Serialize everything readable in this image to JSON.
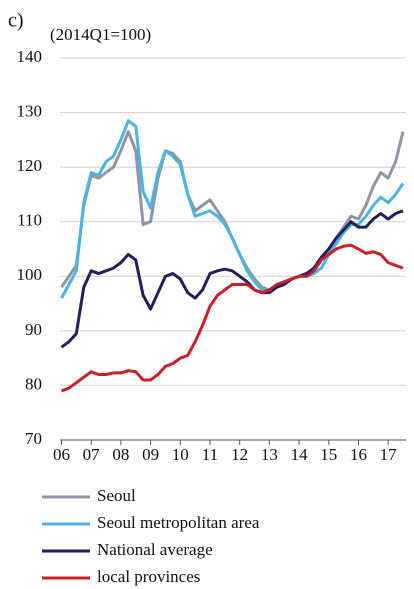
{
  "chart_data": {
    "type": "line",
    "title": "c)",
    "subtitle": "(2014Q1=100)",
    "x": [
      2006,
      2006.25,
      2006.5,
      2006.75,
      2007,
      2007.25,
      2007.5,
      2007.75,
      2008,
      2008.25,
      2008.5,
      2008.75,
      2009,
      2009.25,
      2009.5,
      2009.75,
      2010,
      2010.25,
      2010.5,
      2010.75,
      2011,
      2011.25,
      2011.5,
      2011.75,
      2012,
      2012.25,
      2012.5,
      2012.75,
      2013,
      2013.25,
      2013.5,
      2013.75,
      2014,
      2014.25,
      2014.5,
      2014.75,
      2015,
      2015.25,
      2015.5,
      2015.75,
      2016,
      2016.25,
      2016.5,
      2016.75,
      2017,
      2017.25,
      2017.5
    ],
    "series": [
      {
        "name": "Seoul",
        "color": "#8c96a4",
        "values": [
          98,
          100,
          102,
          113,
          118.5,
          118,
          119,
          120,
          123,
          126.5,
          123,
          109.5,
          110,
          118,
          123,
          122.5,
          121,
          115,
          112,
          113,
          114,
          112,
          110,
          107,
          104,
          101.5,
          99.5,
          98,
          97.5,
          98.5,
          99,
          99.5,
          100,
          100.5,
          101,
          103,
          105,
          107,
          109,
          111,
          110.5,
          113,
          116.5,
          119,
          118,
          121,
          126.5
        ]
      },
      {
        "name": "Seoul metropolitan area",
        "color": "#4bb4e0",
        "values": [
          96,
          98.5,
          101,
          113.5,
          119,
          118.5,
          121,
          122,
          125,
          128.5,
          127.5,
          115.5,
          112.5,
          119,
          123,
          122,
          120.5,
          115,
          111,
          111.5,
          112,
          111,
          109.5,
          107,
          104,
          101,
          99,
          97.5,
          97,
          98,
          98.5,
          99.5,
          100,
          100,
          100.5,
          101.5,
          104,
          106,
          108,
          109.5,
          109.5,
          111,
          113,
          114.5,
          113.5,
          115,
          117
        ]
      },
      {
        "name": "National average",
        "color": "#231f5c",
        "values": [
          87,
          88,
          89.5,
          98,
          101,
          100.5,
          101,
          101.5,
          102.5,
          104,
          103,
          96.5,
          94,
          97,
          100,
          100.5,
          99.5,
          97,
          96,
          97.5,
          100.5,
          101,
          101.3,
          101,
          100,
          99,
          97.5,
          97,
          97,
          98,
          98.5,
          99.5,
          100,
          100.5,
          101.5,
          103.5,
          105,
          107,
          108.5,
          110,
          109,
          109,
          110.5,
          111.5,
          110.5,
          111.5,
          112
        ]
      },
      {
        "name": "local provinces",
        "color": "#c8202a",
        "values": [
          79,
          79.5,
          80.5,
          81.5,
          82.5,
          82,
          82,
          82.3,
          82.3,
          82.7,
          82.5,
          81,
          81,
          82,
          83.5,
          84,
          85,
          85.5,
          88,
          91,
          94.5,
          96.5,
          97.5,
          98.5,
          98.5,
          98.5,
          97.5,
          97,
          97.5,
          98.5,
          99,
          99.5,
          100,
          100,
          101,
          103,
          104,
          105,
          105.5,
          105.7,
          105,
          104.2,
          104.5,
          104,
          102.5,
          102,
          101.5
        ]
      }
    ],
    "xlim": [
      2005.95,
      2017.6
    ],
    "xticks": [
      {
        "value": 2006,
        "label": "06"
      },
      {
        "value": 2007,
        "label": "07"
      },
      {
        "value": 2008,
        "label": "08"
      },
      {
        "value": 2009,
        "label": "09"
      },
      {
        "value": 2010,
        "label": "10"
      },
      {
        "value": 2011,
        "label": "11"
      },
      {
        "value": 2012,
        "label": "12"
      },
      {
        "value": 2013,
        "label": "13"
      },
      {
        "value": 2014,
        "label": "14"
      },
      {
        "value": 2015,
        "label": "15"
      },
      {
        "value": 2016,
        "label": "16"
      },
      {
        "value": 2017,
        "label": "17"
      }
    ],
    "ylim": [
      70,
      140
    ],
    "yticks": [
      70,
      80,
      90,
      100,
      110,
      120,
      130,
      140
    ],
    "grid": true
  }
}
